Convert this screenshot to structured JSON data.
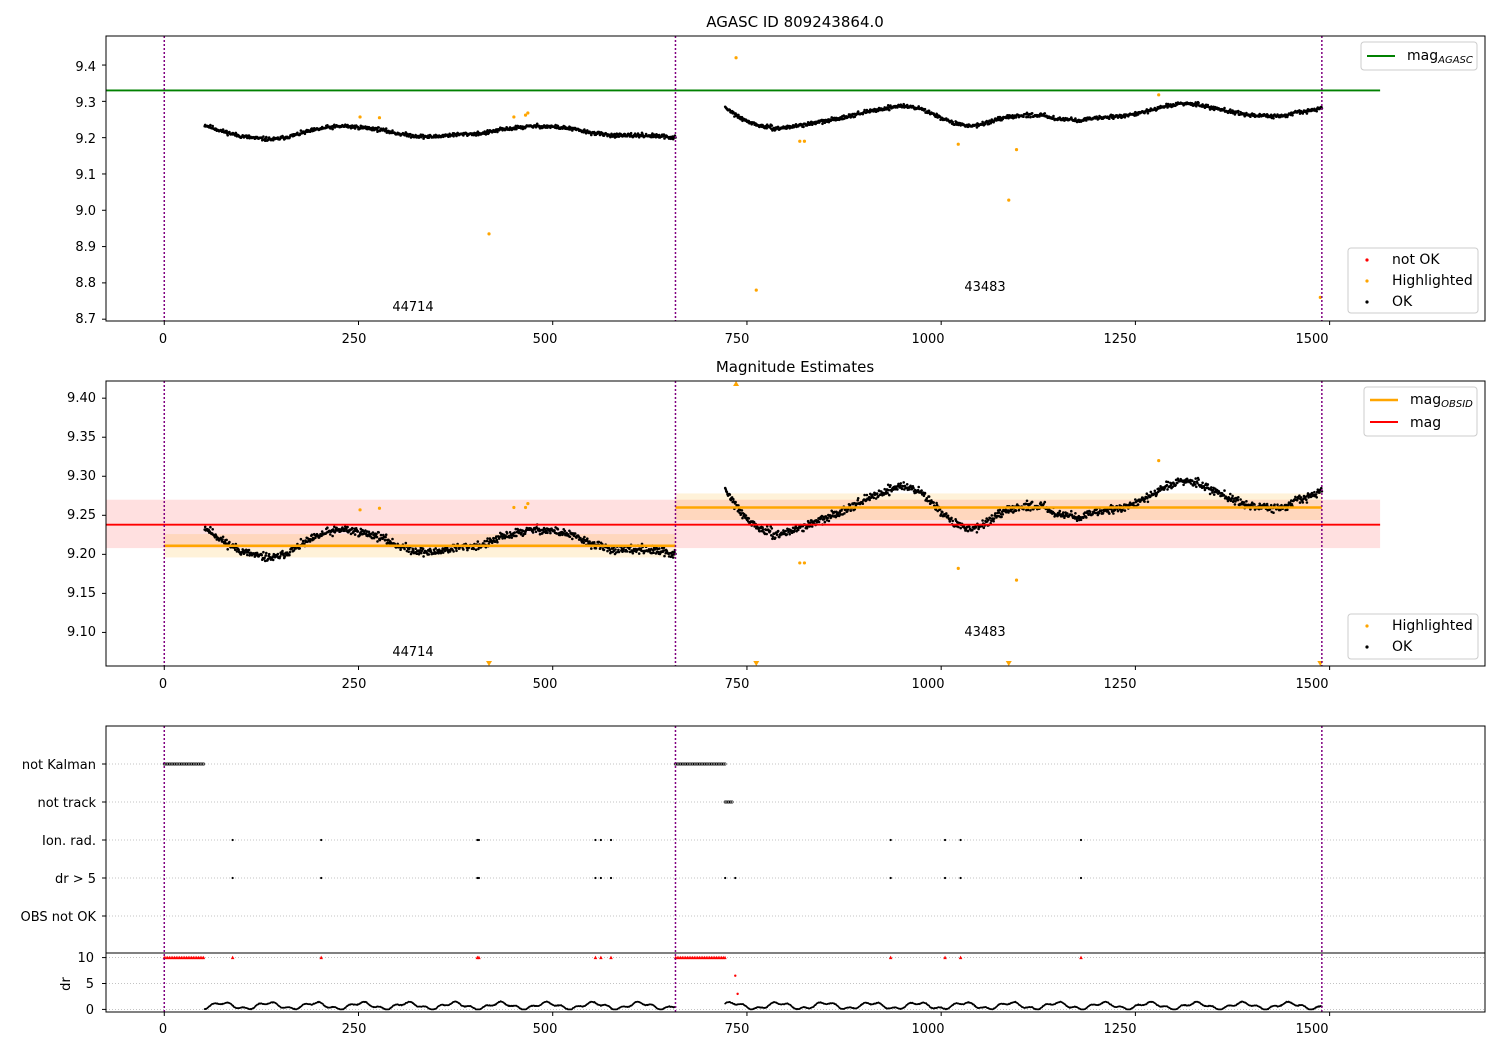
{
  "chart_data": [
    {
      "type": "scatter",
      "title": "AGASC ID 809243864.0",
      "xlim": [
        -75,
        1700
      ],
      "ylim": [
        8.695,
        9.48
      ],
      "xticks": [
        0,
        250,
        500,
        750,
        1000,
        1250,
        1500
      ],
      "xtick_labels": [
        "0",
        "250",
        "500",
        "750",
        "1000",
        "1250",
        "1500"
      ],
      "yticks": [
        8.7,
        8.8,
        8.9,
        9.0,
        9.1,
        9.2,
        9.3,
        9.4
      ],
      "ytick_labels": [
        "8.7",
        "8.8",
        "8.9",
        "9.0",
        "9.1",
        "9.2",
        "9.3",
        "9.4"
      ],
      "obs_boundaries": [
        0,
        658,
        1490
      ],
      "obs_labels": [
        {
          "x": 300,
          "y": 8.725,
          "text": "44714"
        },
        {
          "x": 1045,
          "y": 8.78,
          "text": "43483"
        }
      ],
      "mag_agasc": 9.33,
      "mag_agasc_xrange": [
        -75,
        1565
      ],
      "legend_upper": {
        "position": "top-right",
        "entries": [
          {
            "label_main": "mag",
            "label_sub": "AGASC",
            "color": "#008000",
            "kind": "line"
          }
        ]
      },
      "legend_lower": {
        "position": "lower-right",
        "entries": [
          {
            "label": "not OK",
            "color": "#ff0000",
            "kind": "point"
          },
          {
            "label": "Highlighted",
            "color": "#ffa500",
            "kind": "point"
          },
          {
            "label": "OK",
            "color": "#000000",
            "kind": "point"
          }
        ]
      },
      "ok_segments": [
        {
          "x": [
            52,
            658
          ],
          "profile": [
            9.235,
            9.218,
            9.205,
            9.198,
            9.195,
            9.205,
            9.218,
            9.228,
            9.232,
            9.228,
            9.223,
            9.212,
            9.205,
            9.202,
            9.207,
            9.21,
            9.212,
            9.222,
            9.228,
            9.232,
            9.23,
            9.225,
            9.215,
            9.208,
            9.205,
            9.207,
            9.204,
            9.2
          ]
        },
        {
          "x": [
            722,
            1490
          ],
          "profile": [
            9.282,
            9.25,
            9.232,
            9.225,
            9.232,
            9.24,
            9.248,
            9.26,
            9.27,
            9.28,
            9.288,
            9.282,
            9.262,
            9.24,
            9.232,
            9.242,
            9.255,
            9.262,
            9.262,
            9.252,
            9.248,
            9.252,
            9.258,
            9.262,
            9.272,
            9.285,
            9.295,
            9.292,
            9.28,
            9.27,
            9.262,
            9.258,
            9.262,
            9.272,
            9.282
          ]
        }
      ],
      "highlighted": {
        "x": [
          252,
          277,
          418,
          450,
          465,
          468,
          736,
          762,
          818,
          824,
          1022,
          1087,
          1097,
          1280,
          1488
        ],
        "y": [
          9.257,
          9.255,
          8.935,
          9.257,
          9.262,
          9.268,
          9.42,
          8.78,
          9.19,
          9.19,
          9.182,
          9.028,
          9.167,
          9.318,
          8.76
        ]
      }
    },
    {
      "type": "scatter",
      "title": "Magnitude Estimates",
      "xlim": [
        -75,
        1700
      ],
      "ylim": [
        9.057,
        9.422
      ],
      "xticks": [
        0,
        250,
        500,
        750,
        1000,
        1250,
        1500
      ],
      "xtick_labels": [
        "0",
        "250",
        "500",
        "750",
        "1000",
        "1250",
        "1500"
      ],
      "yticks": [
        9.1,
        9.15,
        9.2,
        9.25,
        9.3,
        9.35,
        9.4
      ],
      "ytick_labels": [
        "9.10",
        "9.15",
        "9.20",
        "9.25",
        "9.30",
        "9.35",
        "9.40"
      ],
      "obs_boundaries": [
        0,
        658,
        1490
      ],
      "obs_labels": [
        {
          "x": 300,
          "y": 9.07,
          "text": "44714"
        },
        {
          "x": 1045,
          "y": 9.094,
          "text": "43483"
        }
      ],
      "mag": 9.238,
      "mag_band": [
        9.208,
        9.27
      ],
      "mag_xrange": [
        -75,
        1565
      ],
      "mag_obsid": [
        {
          "x": [
            0,
            658
          ],
          "value": 9.211,
          "band": [
            9.196,
            9.226
          ]
        },
        {
          "x": [
            658,
            1490
          ],
          "value": 9.26,
          "band": [
            9.244,
            9.278
          ]
        }
      ],
      "legend_upper": {
        "position": "top-right",
        "entries": [
          {
            "label_main": "mag",
            "label_sub": "OBSID",
            "color": "#ffa500",
            "kind": "line"
          },
          {
            "label": "mag",
            "color": "#ff0000",
            "kind": "line"
          }
        ]
      },
      "legend_lower": {
        "position": "lower-right",
        "entries": [
          {
            "label": "Highlighted",
            "color": "#ffa500",
            "kind": "point"
          },
          {
            "label": "OK",
            "color": "#000000",
            "kind": "point"
          }
        ]
      },
      "highlighted": {
        "x": [
          252,
          277,
          450,
          465,
          468,
          818,
          824,
          1022,
          1097,
          1280
        ],
        "y": [
          9.257,
          9.259,
          9.26,
          9.26,
          9.265,
          9.189,
          9.189,
          9.182,
          9.167,
          9.32
        ]
      },
      "clipped_high": {
        "x": [
          736
        ],
        "y": [
          9.42
        ]
      },
      "clipped_low": {
        "x": [
          418,
          762,
          1087,
          1488
        ],
        "y": [
          9.06,
          9.06,
          9.06,
          9.06
        ]
      }
    },
    {
      "type": "scatter",
      "title": "",
      "xlim": [
        -75,
        1700
      ],
      "xticks": [
        0,
        250,
        500,
        750,
        1000,
        1250,
        1500
      ],
      "xtick_labels": [
        "0",
        "250",
        "500",
        "750",
        "1000",
        "1250",
        "1500"
      ],
      "flag_rows": [
        "not Kalman",
        "not track",
        "Ion. rad.",
        "dr > 5",
        "OBS not OK"
      ],
      "flags": {
        "not Kalman": [
          [
            0,
            52
          ],
          [
            658,
            722
          ]
        ],
        "not track": [
          [
            722,
            732
          ]
        ],
        "Ion. rad.": [
          88,
          202,
          403,
          405,
          555,
          562,
          575,
          935,
          1005,
          1025,
          1180
        ],
        "dr > 5": [
          88,
          202,
          403,
          405,
          555,
          562,
          575,
          722,
          735,
          935,
          1005,
          1025,
          1180
        ],
        "OBS not OK": []
      },
      "dr_axis": {
        "label": "dr",
        "ylim": [
          -0.5,
          10.5
        ],
        "yticks": [
          0,
          5,
          10
        ],
        "ytick_labels": [
          "0",
          "5",
          "10"
        ]
      },
      "dr_capped": [
        [
          0,
          52
        ],
        [
          658,
          722
        ],
        88,
        202,
        403,
        405,
        555,
        562,
        575,
        935,
        1005,
        1025,
        1180
      ],
      "dr_outliers": {
        "x": [
          735,
          738
        ],
        "y": [
          6.5,
          3.0
        ]
      },
      "dr_segments": [
        [
          52,
          658
        ],
        [
          722,
          1490
        ]
      ]
    }
  ]
}
